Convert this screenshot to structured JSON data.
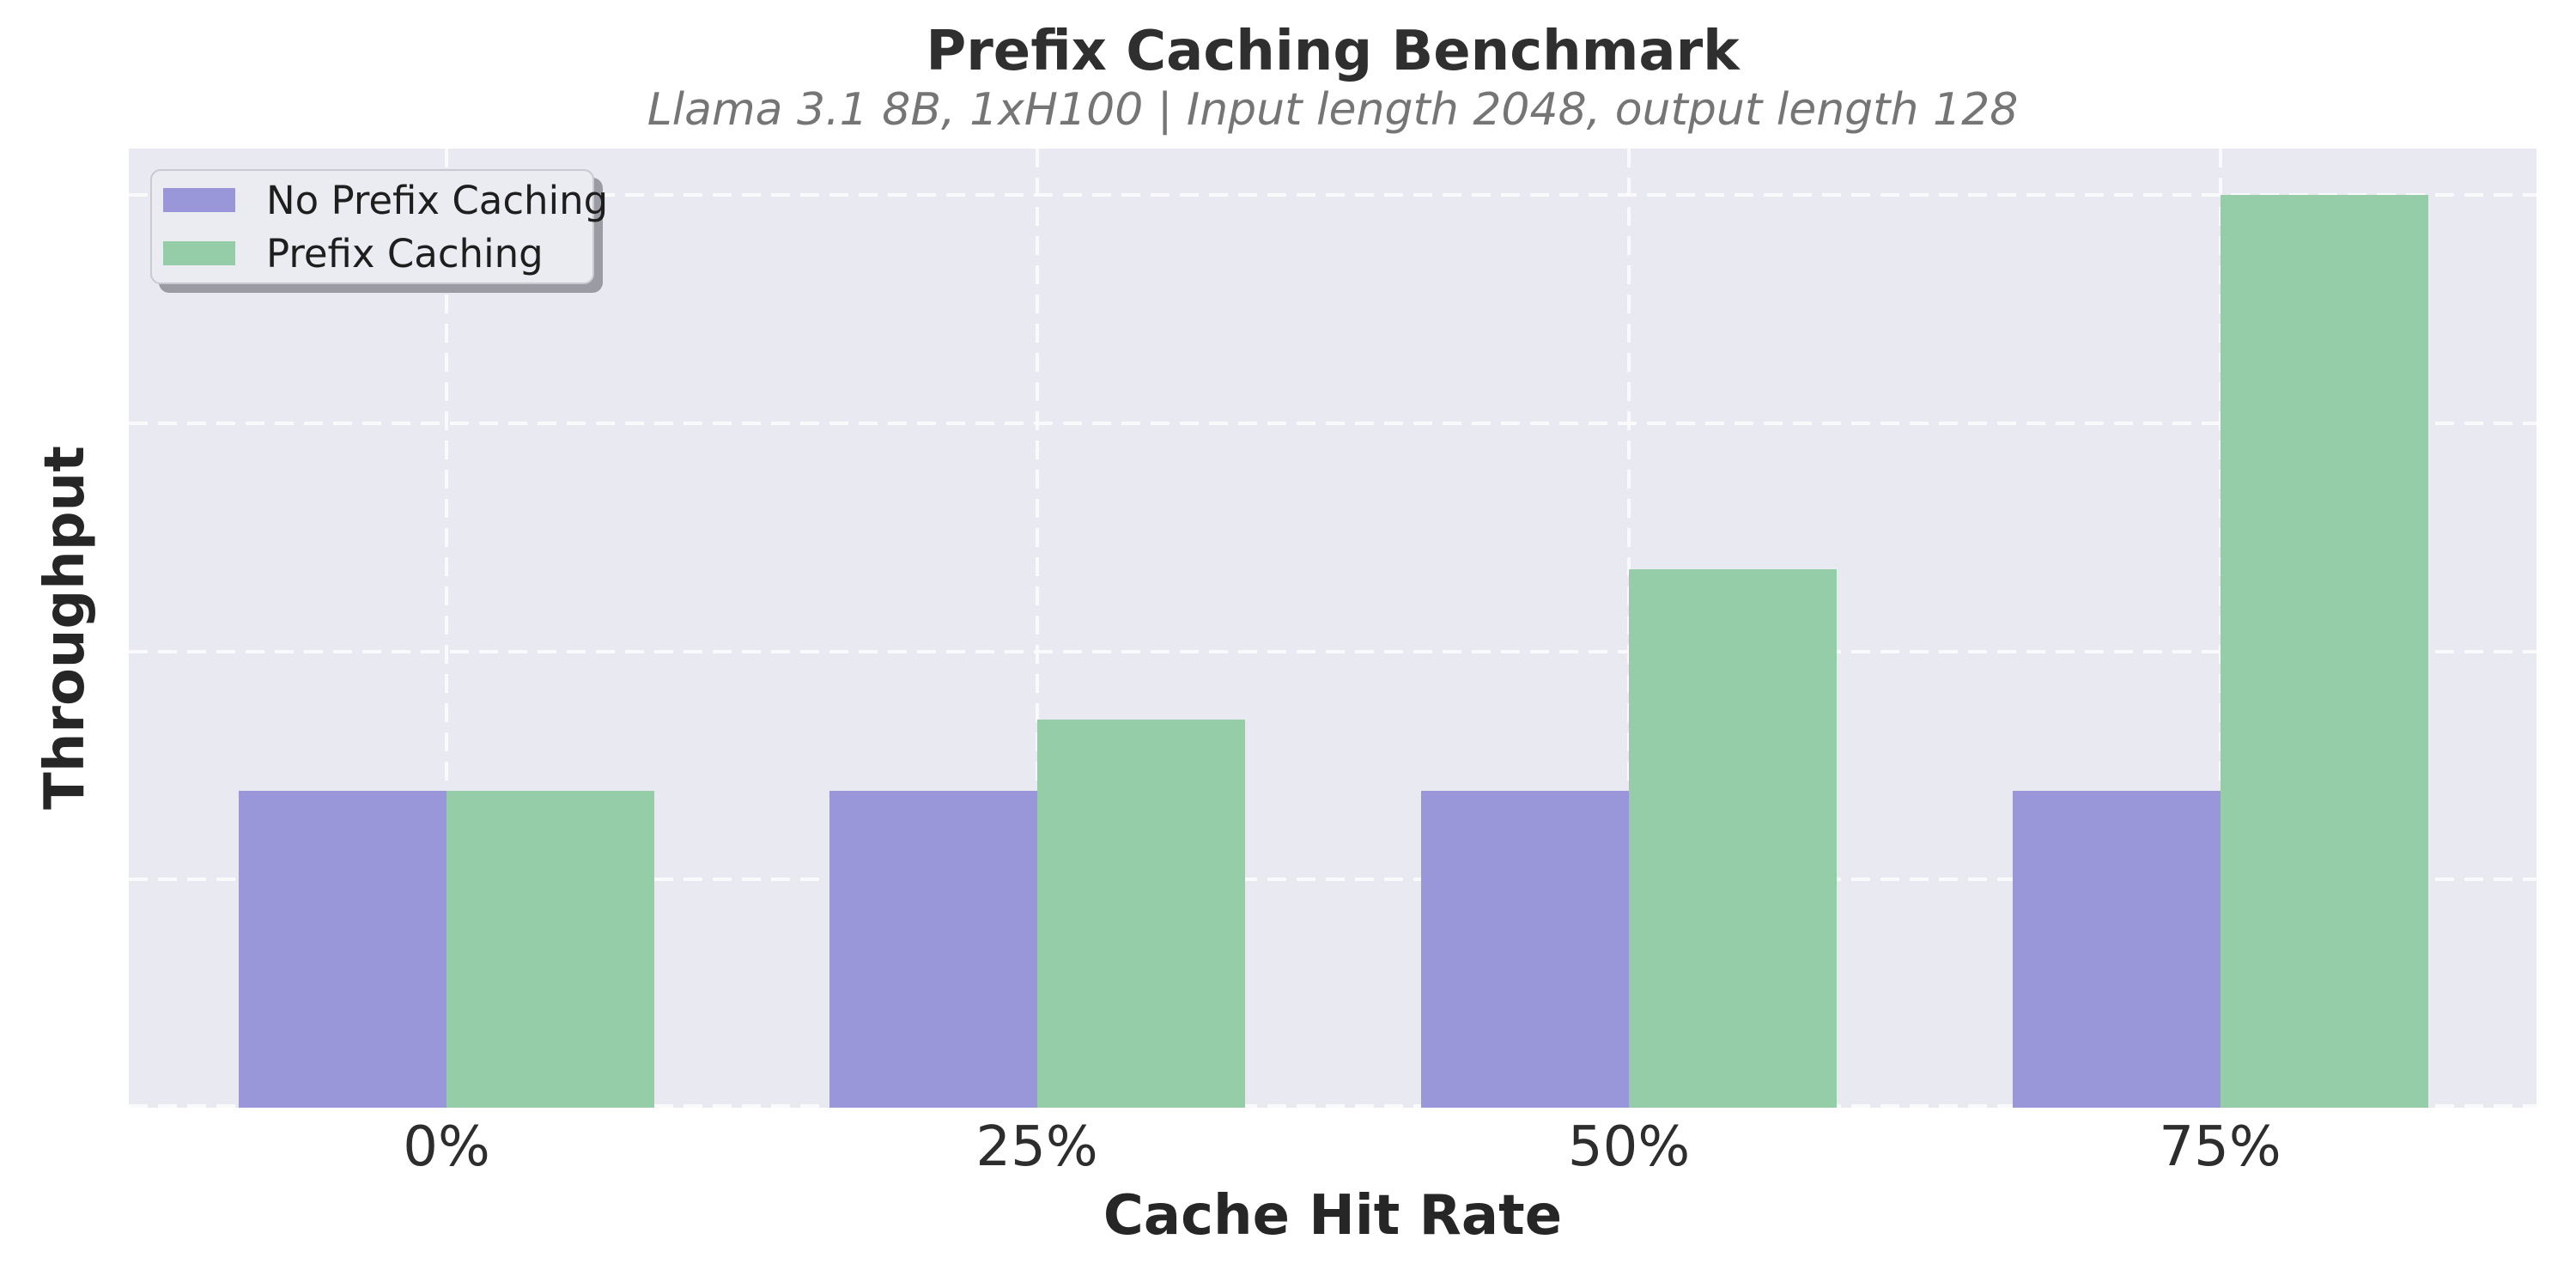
{
  "chart": {
    "title": "Prefix Caching Benchmark",
    "subtitle": "Llama 3.1 8B, 1xH100 | Input length 2048, output length 128",
    "xlabel": "Cache Hit Rate",
    "ylabel": "Throughput"
  },
  "chart_data": {
    "type": "bar",
    "title": "Prefix Caching Benchmark",
    "subtitle": "Llama 3.1 8B, 1xH100 | Input length 2048, output length 128",
    "xlabel": "Cache Hit Rate",
    "ylabel": "Throughput",
    "categories": [
      "0%",
      "25%",
      "50%",
      "75%"
    ],
    "series": [
      {
        "name": "No Prefix Caching",
        "color": "#9996D9",
        "values": [
          1.39,
          1.39,
          1.39,
          1.39
        ]
      },
      {
        "name": "Prefix Caching",
        "color": "#94CDA8",
        "values": [
          1.39,
          1.7,
          2.36,
          4.0
        ]
      }
    ],
    "ylim": [
      0,
      4.2
    ],
    "value_axis_note": "y-axis has no numeric tick labels; values in arbitrary throughput units, gridlines every 1 unit",
    "grid": {
      "show": true,
      "linestyle": "dashed",
      "color": "#FAFAFC",
      "horizontal_ticks": [
        0,
        1,
        2,
        3,
        4
      ],
      "vertical_at_category_centers": true
    },
    "legend": {
      "position": "upper-left",
      "entries": [
        "No Prefix Caching",
        "Prefix Caching"
      ]
    }
  },
  "colors": {
    "figure_background": "#FFFFFF",
    "axes_background": "#E9E9F1",
    "grid": "#FAFAFC",
    "bar_no_prefix": "#9996D9",
    "bar_prefix": "#94CDA8",
    "title_text": "#2F2F2F",
    "subtitle_text": "#757575",
    "axis_label_text": "#262626",
    "tick_label_text": "#2D2D2D",
    "legend_background": "#EBEBF2",
    "legend_border": "#C9C9CF",
    "legend_shadow": "#9B9BA3",
    "legend_text": "#1E1E1E"
  }
}
